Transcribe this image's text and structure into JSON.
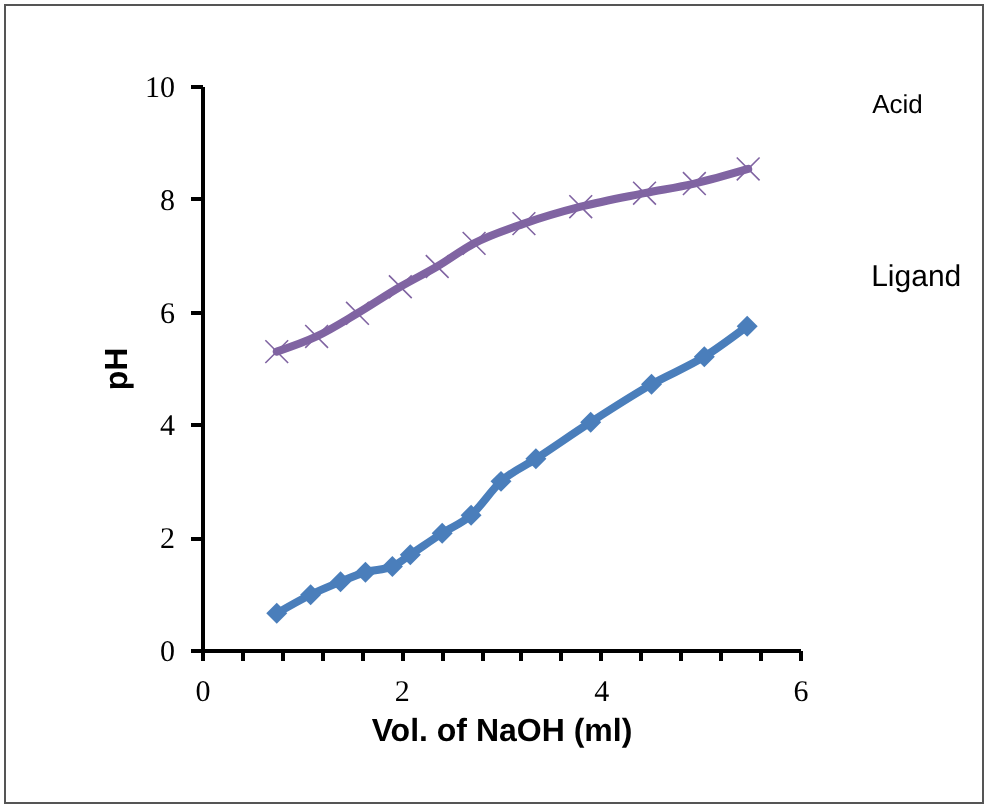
{
  "chart_data": {
    "type": "line",
    "xlabel": "Vol. of NaOH (ml)",
    "ylabel": "pH",
    "xlim": [
      0,
      6
    ],
    "ylim": [
      0,
      10
    ],
    "xticks": [
      0,
      {
        "value": 0.4,
        "label": null
      },
      {
        "value": 0.8,
        "label": null
      },
      {
        "value": 1.2,
        "label": null
      },
      {
        "value": 1.6,
        "label": null
      },
      2,
      {
        "value": 2.4,
        "label": null
      },
      {
        "value": 2.8,
        "label": null
      },
      {
        "value": 3.2,
        "label": null
      },
      {
        "value": 3.6,
        "label": null
      },
      4,
      {
        "value": 4.4,
        "label": null
      },
      {
        "value": 4.8,
        "label": null
      },
      {
        "value": 5.2,
        "label": null
      },
      {
        "value": 5.6,
        "label": null
      },
      6
    ],
    "yticks": [
      0,
      2,
      4,
      6,
      8,
      10
    ],
    "grid": false,
    "legend": false,
    "line_style": "solid",
    "series": [
      {
        "name": "Acid",
        "color": "#8064a2",
        "marker": "cross",
        "x": [
          0.75,
          1.15,
          1.56,
          1.99,
          2.36,
          2.73,
          3.23,
          3.8,
          4.44,
          4.94,
          5.48
        ],
        "values": [
          5.29,
          5.56,
          5.97,
          6.44,
          6.8,
          7.21,
          7.56,
          7.86,
          8.1,
          8.27,
          8.53
        ]
      },
      {
        "name": "Ligand",
        "color": "#4a7ebb",
        "marker": "diamond",
        "x": [
          0.75,
          1.09,
          1.39,
          1.64,
          1.91,
          2.09,
          2.41,
          2.7,
          3.0,
          3.35,
          3.9,
          4.51,
          5.04,
          5.47
        ],
        "values": [
          0.65,
          0.98,
          1.21,
          1.38,
          1.48,
          1.69,
          2.07,
          2.39,
          2.99,
          3.39,
          4.04,
          4.71,
          5.2,
          5.74
        ]
      }
    ]
  }
}
